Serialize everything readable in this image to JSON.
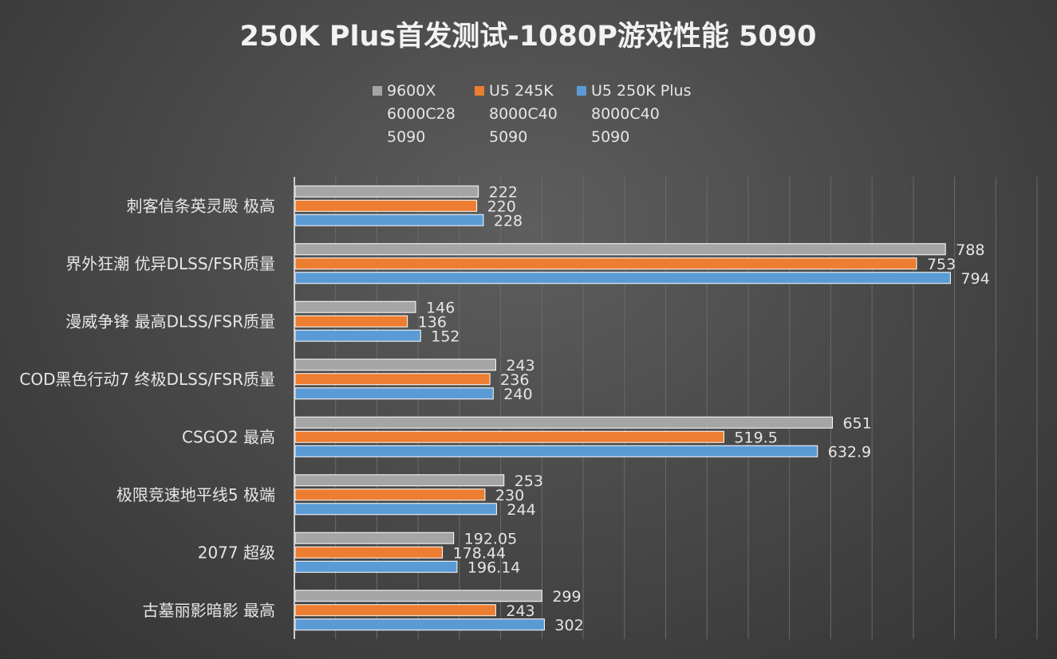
{
  "chart_data": {
    "type": "bar",
    "orientation": "horizontal",
    "title": "250K Plus首发测试-1080P游戏性能 5090",
    "xlabel": "",
    "ylabel": "",
    "xlim": [
      0,
      900
    ],
    "grid": true,
    "legend_position": "top",
    "categories": [
      "刺客信条英灵殿 极高",
      "界外狂潮 优异DLSS/FSR质量",
      "漫威争锋 最高DLSS/FSR质量",
      "COD黑色行动7 终极DLSS/FSR质量",
      "CSGO2 最高",
      "极限竞速地平线5 极端",
      "2077 超级",
      "古墓丽影暗影 最高"
    ],
    "series": [
      {
        "name": "9600X 6000C28 5090",
        "legend_lines": [
          "9600X",
          "6000C28",
          "5090"
        ],
        "color": "#a5a5a5",
        "values": [
          222,
          788,
          146,
          243,
          651,
          253,
          192.05,
          299
        ]
      },
      {
        "name": "U5 245K 8000C40 5090",
        "legend_lines": [
          "U5 245K",
          "8000C40",
          "5090"
        ],
        "color": "#ed7d31",
        "values": [
          220,
          753,
          136,
          236,
          519.5,
          230,
          178.44,
          243
        ]
      },
      {
        "name": "U5 250K Plus 8000C40 5090",
        "legend_lines": [
          "U5 250K Plus",
          "8000C40",
          "5090"
        ],
        "color": "#5b9bd5",
        "values": [
          228,
          794,
          152,
          240,
          632.9,
          244,
          196.14,
          302
        ]
      }
    ]
  }
}
